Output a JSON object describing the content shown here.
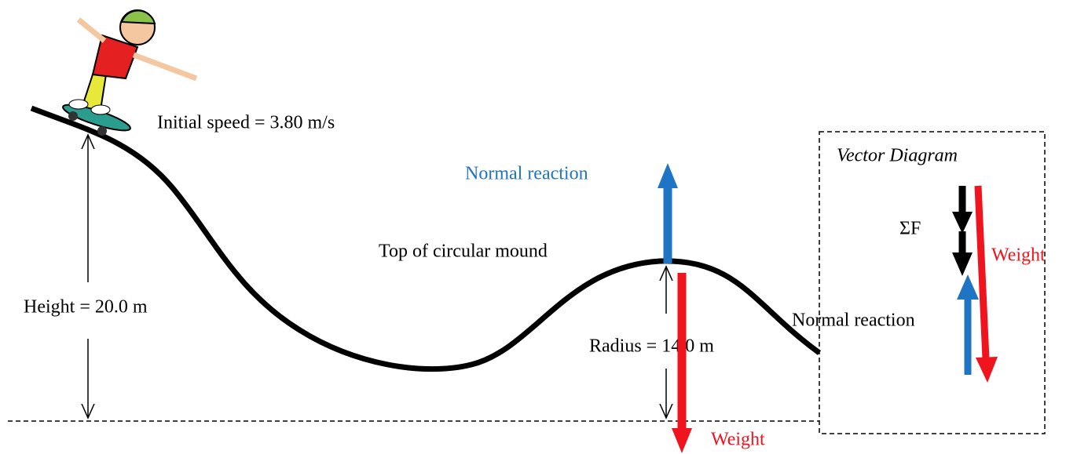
{
  "diagram": {
    "initial_speed": "Initial speed = 3.80 m/s",
    "height": "Height = 20.0 m",
    "top_label": "Top of circular mound",
    "radius": "Radius = 14.0 m",
    "normal_reaction": "Normal reaction",
    "weight": "Weight",
    "vector_diagram": {
      "title": "Vector Diagram",
      "net_force": "ΣF",
      "weight": "Weight",
      "normal_reaction": "Normal reaction"
    }
  }
}
